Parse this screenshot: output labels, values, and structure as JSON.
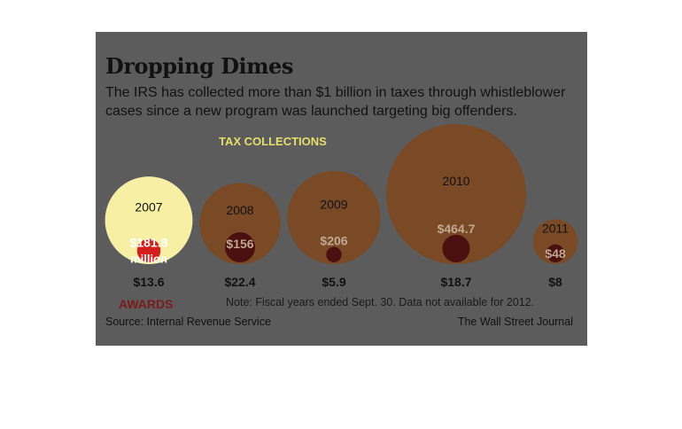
{
  "title": "Dropping Dimes",
  "subtitle": "The IRS has collected more than $1 billion in taxes through whistleblower cases since a new program was launched targeting big offenders.",
  "note": "Note: Fiscal years ended Sept. 30. Data not available for 2012.",
  "source": "Source: Internal Revenue Service",
  "credit": "The Wall Street Journal",
  "colors": {
    "panel": "#5c5c5c",
    "collections_bubble": "#7a4a26",
    "collections_bubble_highlight": "#fff7a8",
    "awards_bubble": "#4a1010",
    "awards_bubble_highlight": "#d41e1e",
    "collection_value_text": "#c0a890",
    "awards_label": "#7b1a1a",
    "tax_collections_label": "#e8de6a"
  },
  "chart_data": {
    "type": "bubble",
    "series_labels": {
      "collections": "TAX COLLECTIONS",
      "awards": "AWARDS"
    },
    "unit_note": "million",
    "years": [
      "2007",
      "2008",
      "2009",
      "2010",
      "2011"
    ],
    "tax_collections": [
      181.8,
      156,
      206,
      464.7,
      48
    ],
    "awards": [
      13.6,
      22.4,
      5.9,
      18.7,
      8
    ],
    "collection_labels": [
      "$181.8",
      "$156",
      "$206",
      "$464.7",
      "$48"
    ],
    "award_labels": [
      "$13.6",
      "$22.4",
      "$5.9",
      "$18.7",
      "$8"
    ],
    "highlighted_year": "2007"
  }
}
